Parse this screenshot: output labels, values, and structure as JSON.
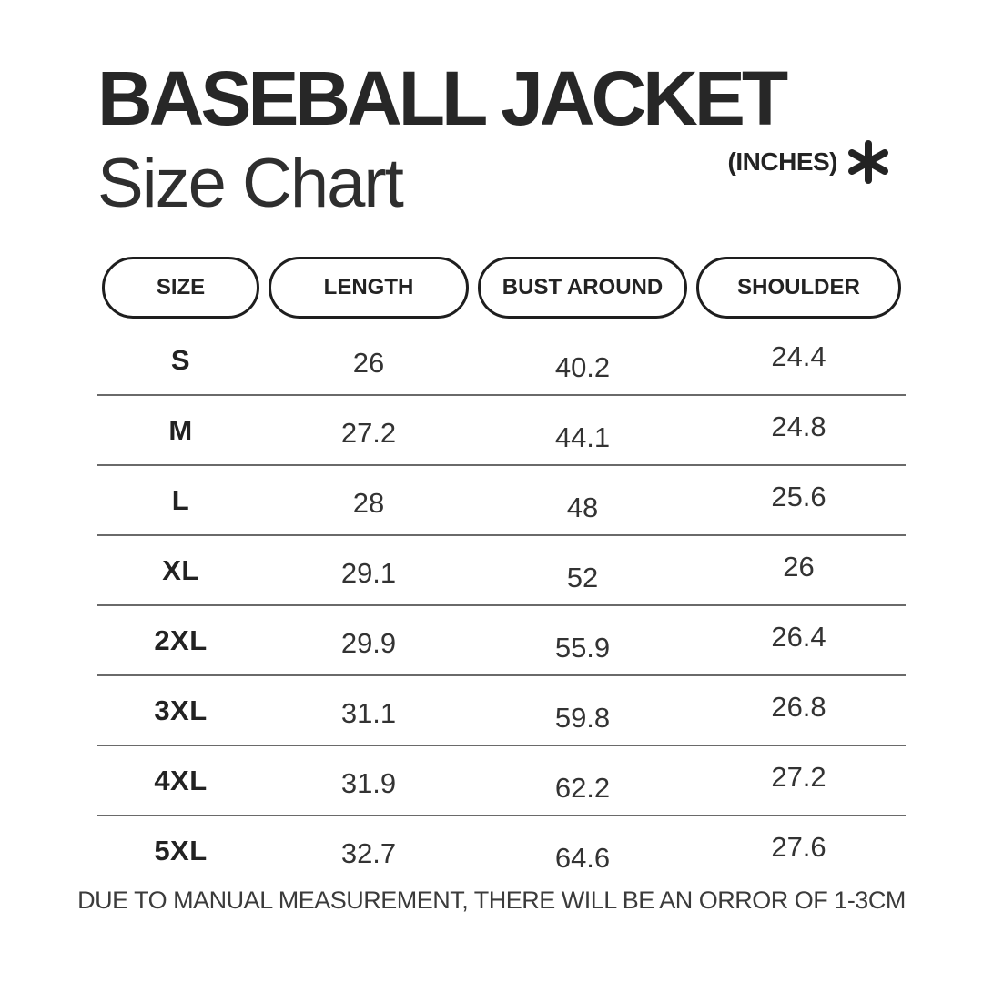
{
  "header": {
    "title": "BASEBALL JACKET",
    "subtitle": "Size Chart",
    "units": "(INCHES)",
    "asterisk_glyph": "✱"
  },
  "table": {
    "columns": [
      {
        "key": "size",
        "label": "SIZE"
      },
      {
        "key": "length",
        "label": "LENGTH"
      },
      {
        "key": "bust",
        "label": "BUST AROUND"
      },
      {
        "key": "shoulder",
        "label": "SHOULDER"
      }
    ],
    "rows": [
      {
        "size": "S",
        "length": "26",
        "bust": "40.2",
        "shoulder": "24.4"
      },
      {
        "size": "M",
        "length": "27.2",
        "bust": "44.1",
        "shoulder": "24.8"
      },
      {
        "size": "L",
        "length": "28",
        "bust": "48",
        "shoulder": "25.6"
      },
      {
        "size": "XL",
        "length": "29.1",
        "bust": "52",
        "shoulder": "26"
      },
      {
        "size": "2XL",
        "length": "29.9",
        "bust": "55.9",
        "shoulder": "26.4"
      },
      {
        "size": "3XL",
        "length": "31.1",
        "bust": "59.8",
        "shoulder": "26.8"
      },
      {
        "size": "4XL",
        "length": "31.9",
        "bust": "62.2",
        "shoulder": "27.2"
      },
      {
        "size": "5XL",
        "length": "32.7",
        "bust": "64.6",
        "shoulder": "27.6"
      }
    ]
  },
  "footer": {
    "note": "DUE TO MANUAL MEASUREMENT, THERE WILL BE AN ORROR OF 1-3CM"
  },
  "colors": {
    "background": "#ffffff",
    "text": "#262626",
    "divider": "#6a6a6a",
    "pill_border": "#1e1e1e"
  },
  "chart_data": {
    "type": "table",
    "title": "BASEBALL JACKET Size Chart",
    "units": "inches",
    "columns": [
      "SIZE",
      "LENGTH",
      "BUST AROUND",
      "SHOULDER"
    ],
    "rows": [
      [
        "S",
        26,
        40.2,
        24.4
      ],
      [
        "M",
        27.2,
        44.1,
        24.8
      ],
      [
        "L",
        28,
        48,
        25.6
      ],
      [
        "XL",
        29.1,
        52,
        26
      ],
      [
        "2XL",
        29.9,
        55.9,
        26.4
      ],
      [
        "3XL",
        31.1,
        59.8,
        26.8
      ],
      [
        "4XL",
        31.9,
        62.2,
        27.2
      ],
      [
        "5XL",
        32.7,
        64.6,
        27.6
      ]
    ],
    "note": "DUE TO MANUAL MEASUREMENT, THERE WILL BE AN ORROR OF 1-3CM"
  }
}
